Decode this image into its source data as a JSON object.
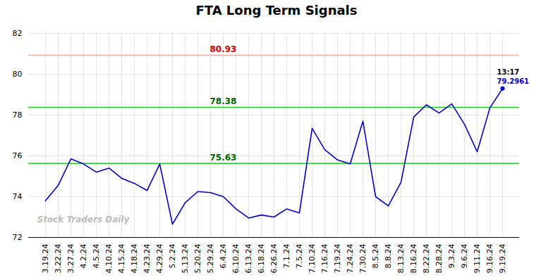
{
  "chart_data": {
    "type": "line",
    "title": "FTA Long Term Signals",
    "categories": [
      "3.19.24",
      "3.22.24",
      "3.27.24",
      "4.2.24",
      "4.5.24",
      "4.10.24",
      "4.15.24",
      "4.18.24",
      "4.23.24",
      "4.29.24",
      "5.2.24",
      "5.13.24",
      "5.20.24",
      "5.29.24",
      "6.4.24",
      "6.10.24",
      "6.13.24",
      "6.18.24",
      "6.26.24",
      "7.1.24",
      "7.5.24",
      "7.10.24",
      "7.16.24",
      "7.19.24",
      "7.24.24",
      "7.30.24",
      "8.5.24",
      "8.8.24",
      "8.13.24",
      "8.16.24",
      "8.22.24",
      "8.28.24",
      "9.3.24",
      "9.6.24",
      "9.11.24",
      "9.16.24",
      "9.19.24"
    ],
    "values": [
      73.8,
      74.55,
      75.85,
      75.6,
      75.2,
      75.4,
      74.9,
      74.65,
      74.3,
      75.6,
      72.65,
      73.7,
      74.25,
      74.2,
      74.0,
      73.4,
      72.95,
      73.1,
      73.0,
      73.4,
      73.2,
      77.35,
      76.3,
      75.8,
      75.6,
      77.7,
      74.0,
      73.55,
      74.7,
      77.9,
      78.5,
      78.1,
      78.55,
      77.55,
      76.2,
      78.35,
      79.3
    ],
    "color": "#0000cc",
    "ylim": [
      72,
      82
    ],
    "yticks": [
      72,
      74,
      76,
      78,
      80,
      82
    ],
    "grid": true,
    "hlines": [
      {
        "value": 80.93,
        "label": "80.93",
        "color": "#ffaaaa",
        "label_color": "#cc0000"
      },
      {
        "value": 78.38,
        "label": "78.38",
        "color": "#22cc22",
        "label_color": "#006600"
      },
      {
        "value": 75.63,
        "label": "75.63",
        "color": "#22cc22",
        "label_color": "#006600"
      }
    ],
    "annotations": [
      {
        "text": "13:17",
        "color": "#000000"
      },
      {
        "text": "79.2961",
        "color": "#0000cc"
      }
    ],
    "watermark": {
      "text": "Stock Traders Daily",
      "color": "#bbbbbb"
    }
  }
}
